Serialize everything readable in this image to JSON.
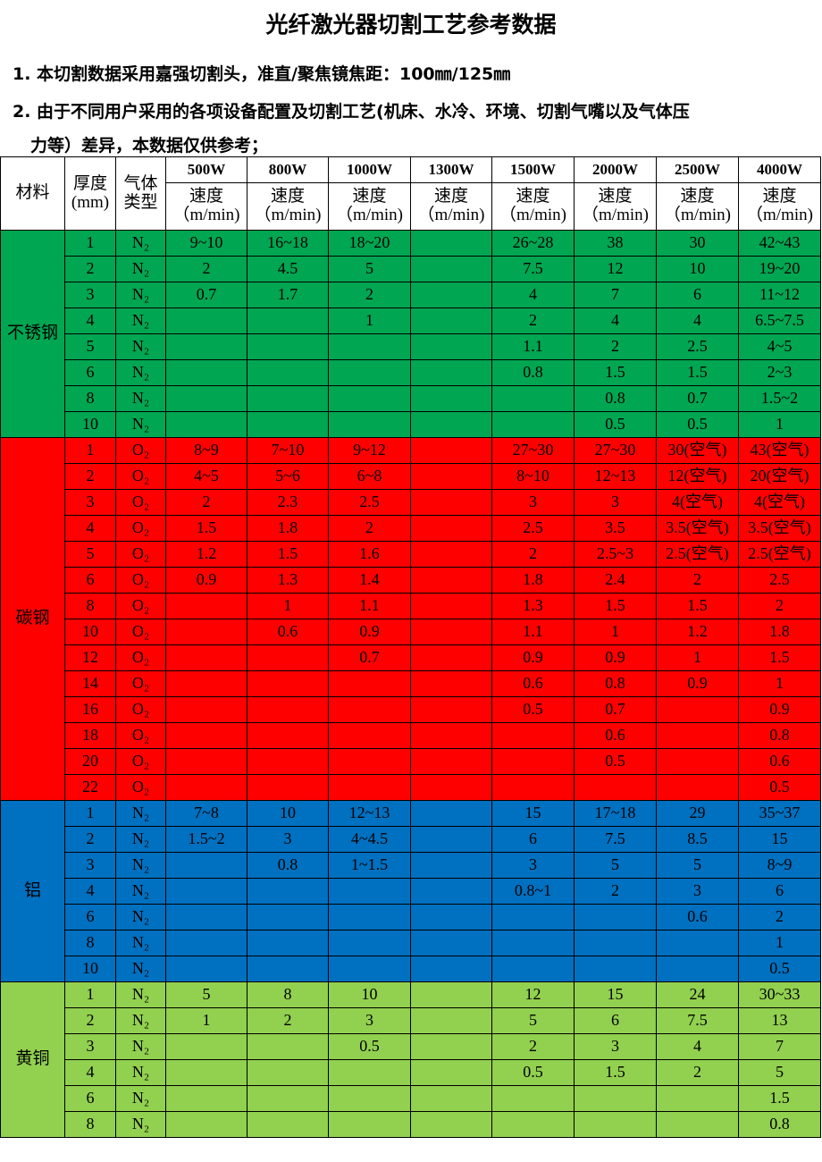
{
  "title": "光纤激光器切割工艺参考数据",
  "notes": [
    "1. 本切割数据采用嘉强切割头，准直/聚焦镜焦距：100㎜/125㎜",
    "2. 由于不同用户采用的各项设备配置及切割工艺(机床、水冷、环境、切割气嘴以及气体压",
    "力等）差异，本数据仅供参考；"
  ],
  "table": {
    "header": {
      "material": "材料",
      "thickness": "厚度\n(mm)",
      "gas": "气体\n类型",
      "powers": [
        "500W",
        "800W",
        "1000W",
        "1300W",
        "1500W",
        "2000W",
        "2500W",
        "4000W"
      ],
      "speed": "速度\n（m/min)"
    },
    "materials": [
      {
        "name": "不锈钢",
        "color": "#00a651",
        "rows": [
          {
            "t": "1",
            "gas": "N₂",
            "v": [
              "9~10",
              "16~18",
              "18~20",
              "",
              "26~28",
              "38",
              "30",
              "42~43"
            ]
          },
          {
            "t": "2",
            "gas": "N₂",
            "v": [
              "2",
              "4.5",
              "5",
              "",
              "7.5",
              "12",
              "10",
              "19~20"
            ]
          },
          {
            "t": "3",
            "gas": "N₂",
            "v": [
              "0.7",
              "1.7",
              "2",
              "",
              "4",
              "7",
              "6",
              "11~12"
            ]
          },
          {
            "t": "4",
            "gas": "N₂",
            "v": [
              "",
              "",
              "1",
              "",
              "2",
              "4",
              "4",
              "6.5~7.5"
            ]
          },
          {
            "t": "5",
            "gas": "N₂",
            "v": [
              "",
              "",
              "",
              "",
              "1.1",
              "2",
              "2.5",
              "4~5"
            ]
          },
          {
            "t": "6",
            "gas": "N₂",
            "v": [
              "",
              "",
              "",
              "",
              "0.8",
              "1.5",
              "1.5",
              "2~3"
            ]
          },
          {
            "t": "8",
            "gas": "N₂",
            "v": [
              "",
              "",
              "",
              "",
              "",
              "0.8",
              "0.7",
              "1.5~2"
            ]
          },
          {
            "t": "10",
            "gas": "N₂",
            "v": [
              "",
              "",
              "",
              "",
              "",
              "0.5",
              "0.5",
              "1"
            ]
          }
        ]
      },
      {
        "name": "碳钢",
        "color": "#ff0000",
        "rows": [
          {
            "t": "1",
            "gas": "O₂",
            "v": [
              "8~9",
              "7~10",
              "9~12",
              "",
              "27~30",
              "27~30",
              "30(空气)",
              "43(空气)"
            ]
          },
          {
            "t": "2",
            "gas": "O₂",
            "v": [
              "4~5",
              "5~6",
              "6~8",
              "",
              "8~10",
              "12~13",
              "12(空气)",
              "20(空气)"
            ]
          },
          {
            "t": "3",
            "gas": "O₂",
            "v": [
              "2",
              "2.3",
              "2.5",
              "",
              "3",
              "3",
              "4(空气)",
              "4(空气)"
            ]
          },
          {
            "t": "4",
            "gas": "O₂",
            "v": [
              "1.5",
              "1.8",
              "2",
              "",
              "2.5",
              "3.5",
              "3.5(空气)",
              "3.5(空气)"
            ]
          },
          {
            "t": "5",
            "gas": "O₂",
            "v": [
              "1.2",
              "1.5",
              "1.6",
              "",
              "2",
              "2.5~3",
              "2.5(空气)",
              "2.5(空气)"
            ]
          },
          {
            "t": "6",
            "gas": "O₂",
            "v": [
              "0.9",
              "1.3",
              "1.4",
              "",
              "1.8",
              "2.4",
              "2",
              "2.5"
            ]
          },
          {
            "t": "8",
            "gas": "O₂",
            "v": [
              "",
              "1",
              "1.1",
              "",
              "1.3",
              "1.5",
              "1.5",
              "2"
            ]
          },
          {
            "t": "10",
            "gas": "O₂",
            "v": [
              "",
              "0.6",
              "0.9",
              "",
              "1.1",
              "1",
              "1.2",
              "1.8"
            ]
          },
          {
            "t": "12",
            "gas": "O₂",
            "v": [
              "",
              "",
              "0.7",
              "",
              "0.9",
              "0.9",
              "1",
              "1.5"
            ]
          },
          {
            "t": "14",
            "gas": "O₂",
            "v": [
              "",
              "",
              "",
              "",
              "0.6",
              "0.8",
              "0.9",
              "1"
            ]
          },
          {
            "t": "16",
            "gas": "O₂",
            "v": [
              "",
              "",
              "",
              "",
              "0.5",
              "0.7",
              "",
              "0.9"
            ]
          },
          {
            "t": "18",
            "gas": "O₂",
            "v": [
              "",
              "",
              "",
              "",
              "",
              "0.6",
              "",
              "0.8"
            ]
          },
          {
            "t": "20",
            "gas": "O₂",
            "v": [
              "",
              "",
              "",
              "",
              "",
              "0.5",
              "",
              "0.6"
            ]
          },
          {
            "t": "22",
            "gas": "O₂",
            "v": [
              "",
              "",
              "",
              "",
              "",
              "",
              "",
              "0.5"
            ]
          }
        ]
      },
      {
        "name": "铝",
        "color": "#0070c0",
        "rows": [
          {
            "t": "1",
            "gas": "N₂",
            "v": [
              "7~8",
              "10",
              "12~13",
              "",
              "15",
              "17~18",
              "29",
              "35~37"
            ]
          },
          {
            "t": "2",
            "gas": "N₂",
            "v": [
              "1.5~2",
              "3",
              "4~4.5",
              "",
              "6",
              "7.5",
              "8.5",
              "15"
            ]
          },
          {
            "t": "3",
            "gas": "N₂",
            "v": [
              "",
              "0.8",
              "1~1.5",
              "",
              "3",
              "5",
              "5",
              "8~9"
            ]
          },
          {
            "t": "4",
            "gas": "N₂",
            "v": [
              "",
              "",
              "",
              "",
              "0.8~1",
              "2",
              "3",
              "6"
            ]
          },
          {
            "t": "6",
            "gas": "N₂",
            "v": [
              "",
              "",
              "",
              "",
              "",
              "",
              "0.6",
              "2"
            ]
          },
          {
            "t": "8",
            "gas": "N₂",
            "v": [
              "",
              "",
              "",
              "",
              "",
              "",
              "",
              "1"
            ]
          },
          {
            "t": "10",
            "gas": "N₂",
            "v": [
              "",
              "",
              "",
              "",
              "",
              "",
              "",
              "0.5"
            ]
          }
        ]
      },
      {
        "name": "黄铜",
        "color": "#92d050",
        "rows": [
          {
            "t": "1",
            "gas": "N₂",
            "v": [
              "5",
              "8",
              "10",
              "",
              "12",
              "15",
              "24",
              "30~33"
            ]
          },
          {
            "t": "2",
            "gas": "N₂",
            "v": [
              "1",
              "2",
              "3",
              "",
              "5",
              "6",
              "7.5",
              "13"
            ]
          },
          {
            "t": "3",
            "gas": "N₂",
            "v": [
              "",
              "",
              "0.5",
              "",
              "2",
              "3",
              "4",
              "7"
            ]
          },
          {
            "t": "4",
            "gas": "N₂",
            "v": [
              "",
              "",
              "",
              "",
              "0.5",
              "1.5",
              "2",
              "5"
            ]
          },
          {
            "t": "6",
            "gas": "N₂",
            "v": [
              "",
              "",
              "",
              "",
              "",
              "",
              "",
              "1.5"
            ]
          },
          {
            "t": "8",
            "gas": "N₂",
            "v": [
              "",
              "",
              "",
              "",
              "",
              "",
              "",
              "0.8"
            ]
          }
        ]
      }
    ]
  }
}
